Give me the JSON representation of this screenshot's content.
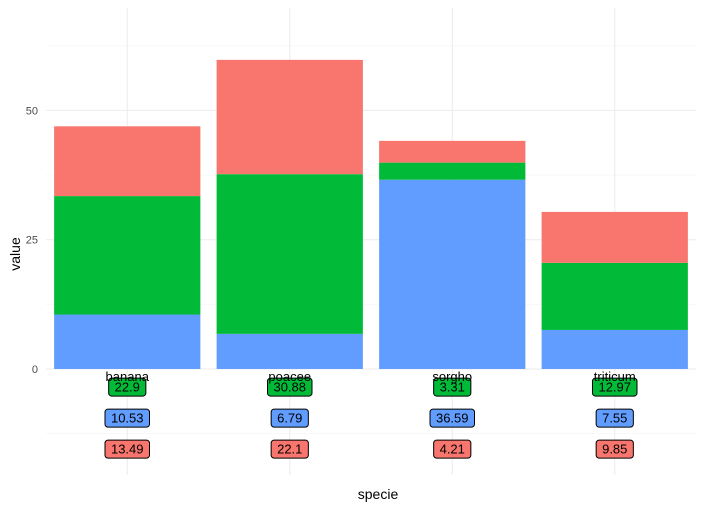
{
  "chart_data": {
    "type": "bar",
    "stacked": true,
    "title": "",
    "xlabel": "specie",
    "ylabel": "value",
    "categories": [
      "banana",
      "poacee",
      "sorgho",
      "triticum"
    ],
    "series": [
      {
        "values": [
          10.53,
          6.79,
          36.59,
          7.55
        ],
        "color": "#619CFF"
      },
      {
        "values": [
          22.9,
          30.88,
          3.31,
          12.97
        ],
        "color": "#00BA38"
      },
      {
        "values": [
          13.49,
          22.1,
          4.21,
          9.85
        ],
        "color": "#F8766D"
      }
    ],
    "label_rows_order": [
      1,
      0,
      2
    ],
    "yticks": [
      "0",
      "25",
      "50"
    ],
    "ylim": [
      -20.5,
      69.8
    ],
    "grid": true,
    "legend": "none"
  }
}
